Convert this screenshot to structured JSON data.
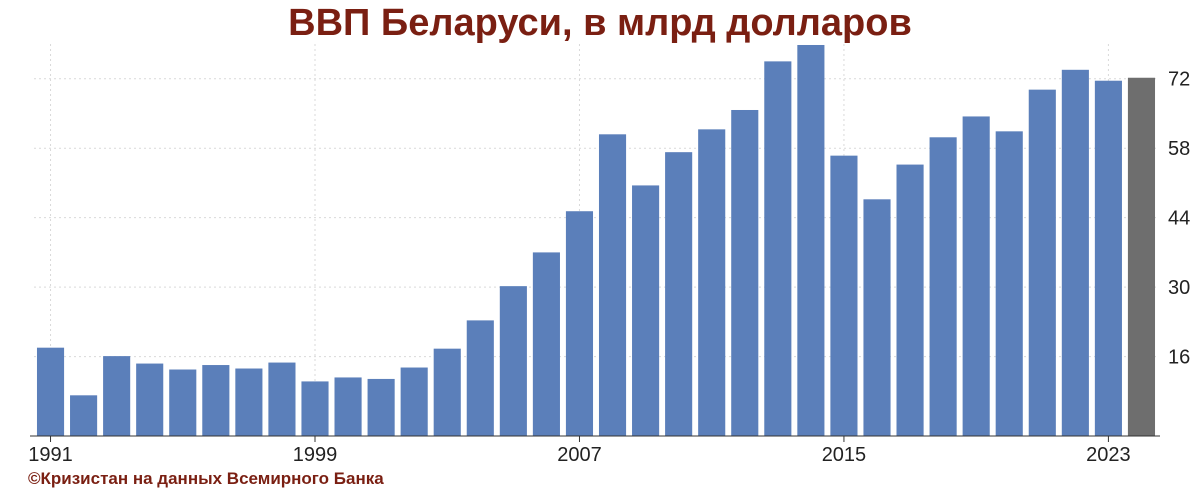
{
  "title": "ВВП Беларуси, в млрд долларов",
  "credit": "©Кризистан на данных Всемирного Банка",
  "colors": {
    "bar": "#5b7fba",
    "bar_highlight": "#6e6e6e",
    "title": "#7a1f12",
    "grid": "#d9d9d9",
    "axis": "#333333"
  },
  "chart_data": {
    "type": "bar",
    "title": "ВВП Беларуси, в млрд долларов",
    "xlabel": "",
    "ylabel": "",
    "categories": [
      "1991",
      "1992",
      "1993",
      "1994",
      "1995",
      "1996",
      "1997",
      "1998",
      "1999",
      "2000",
      "2001",
      "2002",
      "2003",
      "2004",
      "2005",
      "2006",
      "2007",
      "2008",
      "2009",
      "2010",
      "2011",
      "2012",
      "2013",
      "2014",
      "2015",
      "2016",
      "2017",
      "2018",
      "2019",
      "2020",
      "2021",
      "2022",
      "2023",
      "2024"
    ],
    "values": [
      17.8,
      8.2,
      16.1,
      14.6,
      13.4,
      14.3,
      13.6,
      14.8,
      11.0,
      11.8,
      11.5,
      13.8,
      17.6,
      23.3,
      30.2,
      37.0,
      45.3,
      60.8,
      50.5,
      57.2,
      61.8,
      65.7,
      75.5,
      78.8,
      56.5,
      47.7,
      54.7,
      60.2,
      64.4,
      61.4,
      69.8,
      73.8,
      71.6,
      72.2
    ],
    "highlight_index": 33,
    "ylim": [
      0,
      79
    ],
    "yticks": [
      16,
      30,
      44,
      58,
      72
    ],
    "xtick_labels": [
      "1991",
      "1999",
      "2007",
      "2015",
      "2023"
    ],
    "grid": true,
    "y_axis_side": "right"
  }
}
